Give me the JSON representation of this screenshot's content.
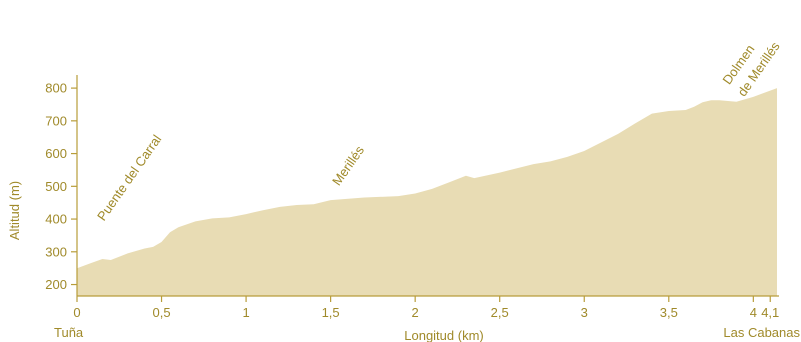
{
  "chart_data": {
    "type": "area",
    "xlabel": "Longitud (km)",
    "ylabel": "Altitud (m)",
    "xlim": [
      0,
      4.14
    ],
    "ylim": [
      165,
      840
    ],
    "xticks": [
      {
        "value": 0,
        "label": "0"
      },
      {
        "value": 0.5,
        "label": "0,5"
      },
      {
        "value": 1,
        "label": "1"
      },
      {
        "value": 1.5,
        "label": "1,5"
      },
      {
        "value": 2,
        "label": "2"
      },
      {
        "value": 2.5,
        "label": "2,5"
      },
      {
        "value": 3,
        "label": "3"
      },
      {
        "value": 3.5,
        "label": "3,5"
      },
      {
        "value": 4,
        "label": "4"
      },
      {
        "value": 4.1,
        "label": "4,1"
      }
    ],
    "yticks": [
      {
        "value": 200,
        "label": "200"
      },
      {
        "value": 300,
        "label": "300"
      },
      {
        "value": 400,
        "label": "400"
      },
      {
        "value": 500,
        "label": "500"
      },
      {
        "value": 600,
        "label": "600"
      },
      {
        "value": 700,
        "label": "700"
      },
      {
        "value": 800,
        "label": "800"
      }
    ],
    "fill_color": "#e8dcb4",
    "text_color": "#a08a2a",
    "axis_color": "#b89d3a",
    "x": [
      0,
      0.08,
      0.15,
      0.2,
      0.3,
      0.4,
      0.45,
      0.5,
      0.55,
      0.6,
      0.7,
      0.8,
      0.9,
      1.0,
      1.1,
      1.2,
      1.3,
      1.4,
      1.5,
      1.7,
      1.9,
      2.0,
      2.1,
      2.2,
      2.3,
      2.35,
      2.5,
      2.7,
      2.8,
      2.9,
      3.0,
      3.2,
      3.3,
      3.4,
      3.5,
      3.6,
      3.65,
      3.7,
      3.75,
      3.8,
      3.9,
      4.0,
      4.14
    ],
    "y": [
      250,
      265,
      278,
      275,
      295,
      310,
      315,
      330,
      360,
      375,
      393,
      402,
      405,
      415,
      427,
      437,
      443,
      445,
      458,
      466,
      470,
      478,
      492,
      512,
      532,
      525,
      542,
      568,
      576,
      590,
      608,
      660,
      692,
      722,
      730,
      733,
      743,
      757,
      763,
      763,
      758,
      773,
      800
    ],
    "annotations": [
      {
        "label": "Puente del Carral",
        "x": 0.1,
        "y": 285
      },
      {
        "label": "Merillés",
        "x": 1.62,
        "y": 475
      },
      {
        "label": "Dolmen",
        "x": 4.0,
        "y": 790
      },
      {
        "label": "de Merillés",
        "x": 4.07,
        "y": 790
      }
    ],
    "start_label": "Tuña",
    "end_label": "Las Cabanas"
  }
}
